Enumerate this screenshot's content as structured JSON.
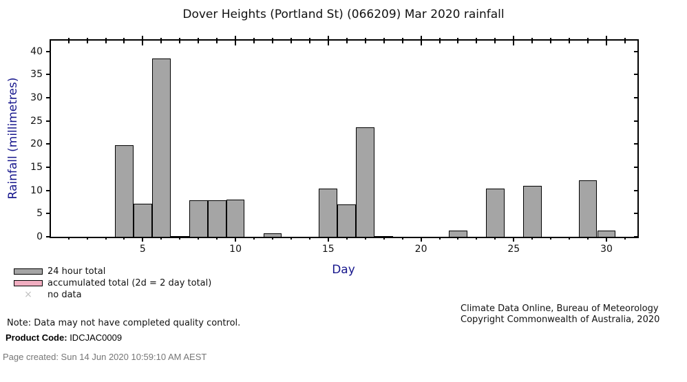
{
  "page": {
    "note": "Note: Data may not have completed quality control.",
    "product_code_label": "Product Code:",
    "product_code_value": "IDCJAC0009",
    "attribution_line1": "Climate Data Online, Bureau of Meteorology",
    "attribution_line2": "Copyright Commonwealth of Australia, 2020",
    "page_created": "Page created: Sun 14 Jun 2020 10:59:10 AM AEST"
  },
  "legend": {
    "items": [
      {
        "label": "24 hour total",
        "swatch": "gray-box",
        "color": "#a5a5a5",
        "border": "#000000"
      },
      {
        "label": "accumulated total (2d = 2 day total)",
        "swatch": "pink-box",
        "color": "#f1aec1",
        "border": "#000000"
      },
      {
        "label": "no data",
        "swatch": "x-mark",
        "symbol": "×",
        "color": "#bfbfbf"
      }
    ]
  },
  "chart_data": {
    "type": "bar",
    "title": "Dover Heights (Portland St) (066209) Mar 2020 rainfall",
    "xlabel": "Day",
    "ylabel": "Rainfall (millimetres)",
    "categories": [
      1,
      2,
      3,
      4,
      5,
      6,
      7,
      8,
      9,
      10,
      11,
      12,
      13,
      14,
      15,
      16,
      17,
      18,
      19,
      20,
      21,
      22,
      23,
      24,
      25,
      26,
      27,
      28,
      29,
      30,
      31
    ],
    "series": [
      {
        "name": "24 hour total",
        "values": [
          0,
          0,
          0,
          19.8,
          7.2,
          38.4,
          0.2,
          7.8,
          7.8,
          8.0,
          0,
          0.8,
          0,
          0,
          10.4,
          7.0,
          23.6,
          0.2,
          0,
          0,
          0,
          1.4,
          0,
          10.4,
          0,
          11.0,
          0,
          0,
          12.2,
          1.4,
          0
        ]
      }
    ],
    "yticks": [
      0,
      5,
      10,
      15,
      20,
      25,
      30,
      35,
      40
    ],
    "xticks_labeled": [
      5,
      10,
      15,
      20,
      25,
      30
    ],
    "ylim": [
      0,
      42.3
    ],
    "xlim": [
      0.05,
      31.67
    ],
    "grid": false,
    "legend_position": "below-left",
    "bar_color": "#a5a5a5",
    "bar_border": "#000000",
    "axis_color": "#000000",
    "axis_label_color": "#16168c"
  }
}
